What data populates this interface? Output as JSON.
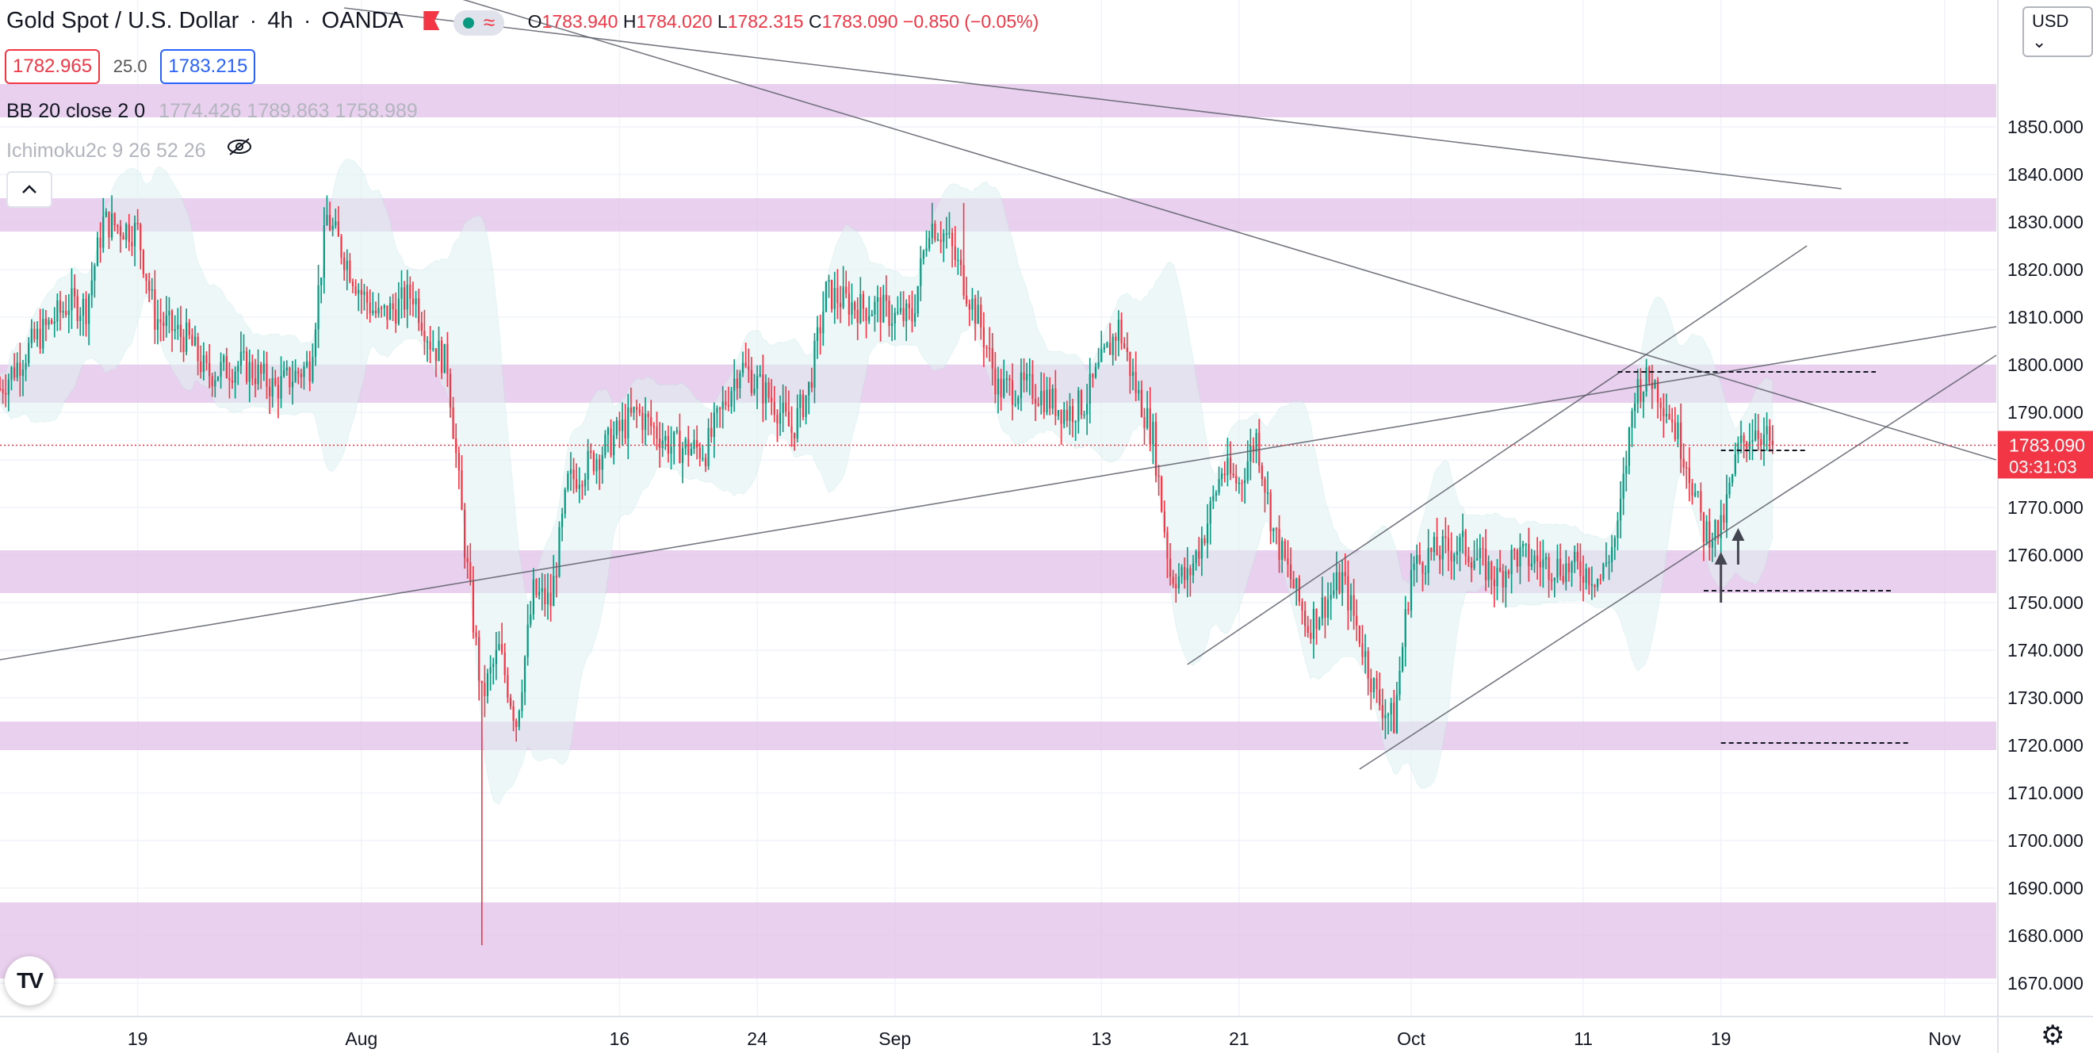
{
  "header": {
    "symbol": "Gold Spot / U.S. Dollar",
    "timeframe": "4h",
    "broker": "OANDA",
    "ohlc": {
      "o_label": "O",
      "o": "1783.940",
      "h_label": "H",
      "h": "1784.020",
      "l_label": "L",
      "l": "1782.315",
      "c_label": "C",
      "c": "1783.090",
      "change": "−0.850 (−0.05%)"
    }
  },
  "quote": {
    "bid": "1782.965",
    "spread": "25.0",
    "ask": "1783.215"
  },
  "indicators": {
    "bb": {
      "name": "BB 20 close 2 0",
      "values": "1774.426  1789.863  1758.989"
    },
    "ichimoku": {
      "name": "Ichimoku2c 9 26 52 26"
    }
  },
  "price_scale": {
    "currency": "USD",
    "current_price": "1783.090",
    "countdown": "03:31:03"
  },
  "colors": {
    "up": "#089981",
    "down": "#f23645",
    "zone": "#e1bee7",
    "cloud": "#e0f2f1",
    "trend": "#787b86"
  },
  "icons": [
    "flag-icon",
    "status-dot-icon",
    "wave-icon",
    "eye-off-icon",
    "chevron-up-icon",
    "tradingview-logo-icon",
    "gear-icon"
  ],
  "chart_data": {
    "type": "candlestick",
    "title": "Gold Spot / U.S. Dollar",
    "interval": "4h",
    "ylim": [
      1663,
      1875
    ],
    "y_ticks": [
      1670,
      1680,
      1690,
      1700,
      1710,
      1720,
      1730,
      1740,
      1750,
      1760,
      1770,
      1780,
      1790,
      1800,
      1810,
      1820,
      1830,
      1840,
      1850
    ],
    "y_tick_labels": [
      "1670.000",
      "1680.000",
      "1690.000",
      "1700.000",
      "1710.000",
      "1720.000",
      "1730.000",
      "1740.000",
      "1750.000",
      "1760.000",
      "1770.000",
      "1780.000",
      "1790.000",
      "1800.000",
      "1810.000",
      "1820.000",
      "1830.000",
      "1840.000",
      "1850.000"
    ],
    "x_ticks": [
      "2021-07-19",
      "2021-08-01",
      "2021-08-16",
      "2021-08-24",
      "2021-09-01",
      "2021-09-13",
      "2021-09-21",
      "2021-10-01",
      "2021-10-11",
      "2021-10-19",
      "2021-11-01"
    ],
    "x_tick_labels": [
      "19",
      "Aug",
      "16",
      "24",
      "Sep",
      "13",
      "21",
      "Oct",
      "11",
      "19",
      "Nov"
    ],
    "x_range": [
      "2021-07-11",
      "2021-11-04"
    ],
    "close_path": [
      [
        "2021-07-11",
        1795
      ],
      [
        "2021-07-13",
        1805
      ],
      [
        "2021-07-15",
        1813
      ],
      [
        "2021-07-16",
        1812
      ],
      [
        "2021-07-17",
        1830
      ],
      [
        "2021-07-19",
        1828
      ],
      [
        "2021-07-20",
        1810
      ],
      [
        "2021-07-22",
        1805
      ],
      [
        "2021-07-23",
        1798
      ],
      [
        "2021-07-25",
        1800
      ],
      [
        "2021-07-26",
        1798
      ],
      [
        "2021-07-27",
        1795
      ],
      [
        "2021-07-29",
        1800
      ],
      [
        "2021-07-30",
        1831
      ],
      [
        "2021-08-01",
        1815
      ],
      [
        "2021-08-02",
        1810
      ],
      [
        "2021-08-03",
        1812
      ],
      [
        "2021-08-04",
        1815
      ],
      [
        "2021-08-05",
        1805
      ],
      [
        "2021-08-06",
        1800
      ],
      [
        "2021-08-07",
        1762
      ],
      [
        "2021-08-08",
        1730
      ],
      [
        "2021-08-09",
        1740
      ],
      [
        "2021-08-10",
        1725
      ],
      [
        "2021-08-11",
        1752
      ],
      [
        "2021-08-12",
        1750
      ],
      [
        "2021-08-13",
        1775
      ],
      [
        "2021-08-15",
        1782
      ],
      [
        "2021-08-17",
        1790
      ],
      [
        "2021-08-19",
        1783
      ],
      [
        "2021-08-21",
        1782
      ],
      [
        "2021-08-23",
        1800
      ],
      [
        "2021-08-25",
        1792
      ],
      [
        "2021-08-26",
        1786
      ],
      [
        "2021-08-27",
        1795
      ],
      [
        "2021-08-28",
        1815
      ],
      [
        "2021-08-30",
        1812
      ],
      [
        "2021-08-31",
        1812
      ],
      [
        "2021-09-01",
        1810
      ],
      [
        "2021-09-02",
        1810
      ],
      [
        "2021-09-03",
        1830
      ],
      [
        "2021-09-04",
        1827
      ],
      [
        "2021-09-06",
        1808
      ],
      [
        "2021-09-07",
        1795
      ],
      [
        "2021-09-09",
        1795
      ],
      [
        "2021-09-11",
        1790
      ],
      [
        "2021-09-12",
        1792
      ],
      [
        "2021-09-13",
        1800
      ],
      [
        "2021-09-14",
        1808
      ],
      [
        "2021-09-15",
        1795
      ],
      [
        "2021-09-16",
        1785
      ],
      [
        "2021-09-17",
        1756
      ],
      [
        "2021-09-18",
        1755
      ],
      [
        "2021-09-19",
        1765
      ],
      [
        "2021-09-20",
        1778
      ],
      [
        "2021-09-21",
        1775
      ],
      [
        "2021-09-22",
        1785
      ],
      [
        "2021-09-23",
        1765
      ],
      [
        "2021-09-24",
        1755
      ],
      [
        "2021-09-25",
        1745
      ],
      [
        "2021-09-26",
        1750
      ],
      [
        "2021-09-27",
        1755
      ],
      [
        "2021-09-28",
        1743
      ],
      [
        "2021-09-29",
        1730
      ],
      [
        "2021-09-30",
        1725
      ],
      [
        "2021-10-01",
        1757
      ],
      [
        "2021-10-02",
        1760
      ],
      [
        "2021-10-04",
        1762
      ],
      [
        "2021-10-06",
        1755
      ],
      [
        "2021-10-07",
        1760
      ],
      [
        "2021-10-09",
        1758
      ],
      [
        "2021-10-11",
        1757
      ],
      [
        "2021-10-12",
        1755
      ],
      [
        "2021-10-13",
        1765
      ],
      [
        "2021-10-14",
        1795
      ],
      [
        "2021-10-15",
        1797
      ],
      [
        "2021-10-16",
        1790
      ],
      [
        "2021-10-17",
        1780
      ],
      [
        "2021-10-18",
        1765
      ],
      [
        "2021-10-19",
        1765
      ],
      [
        "2021-10-20",
        1782
      ],
      [
        "2021-10-21",
        1787
      ],
      [
        "2021-10-22",
        1783.09
      ]
    ],
    "wick_extremes": [
      {
        "date": "2021-08-08",
        "low": 1678
      },
      {
        "date": "2021-09-05",
        "high": 1834
      },
      {
        "date": "2021-10-15",
        "high": 1800
      }
    ],
    "support_resistance_zones": [
      [
        1852,
        1859
      ],
      [
        1828,
        1835
      ],
      [
        1792,
        1800
      ],
      [
        1752,
        1761
      ],
      [
        1719,
        1725
      ],
      [
        1671,
        1687
      ]
    ],
    "trend_lines": [
      {
        "from": [
          "2021-07-11",
          1738
        ],
        "to": [
          "2021-11-04",
          1808
        ]
      },
      {
        "from": [
          "2021-07-11",
          1906
        ],
        "to": [
          "2021-11-04",
          1780
        ]
      },
      {
        "from": [
          "2021-07-31",
          1875
        ],
        "to": [
          "2021-10-26",
          1837
        ]
      },
      {
        "from": [
          "2021-09-18",
          1737
        ],
        "to": [
          "2021-10-24",
          1825
        ]
      },
      {
        "from": [
          "2021-09-28",
          1715
        ],
        "to": [
          "2021-11-04",
          1802
        ]
      }
    ],
    "dashed_levels": [
      {
        "from": "2021-10-13",
        "to": "2021-10-28",
        "price": 1798.5
      },
      {
        "from": "2021-10-19",
        "to": "2021-10-24",
        "price": 1782
      },
      {
        "from": "2021-10-18",
        "to": "2021-10-29",
        "price": 1752.5
      },
      {
        "from": "2021-10-19",
        "to": "2021-10-30",
        "price": 1720.5
      }
    ],
    "arrows": [
      {
        "date": "2021-10-19",
        "from": 1750,
        "to": 1760
      },
      {
        "date": "2021-10-20",
        "from": 1758,
        "to": 1765
      }
    ],
    "current_price": 1783.09
  }
}
